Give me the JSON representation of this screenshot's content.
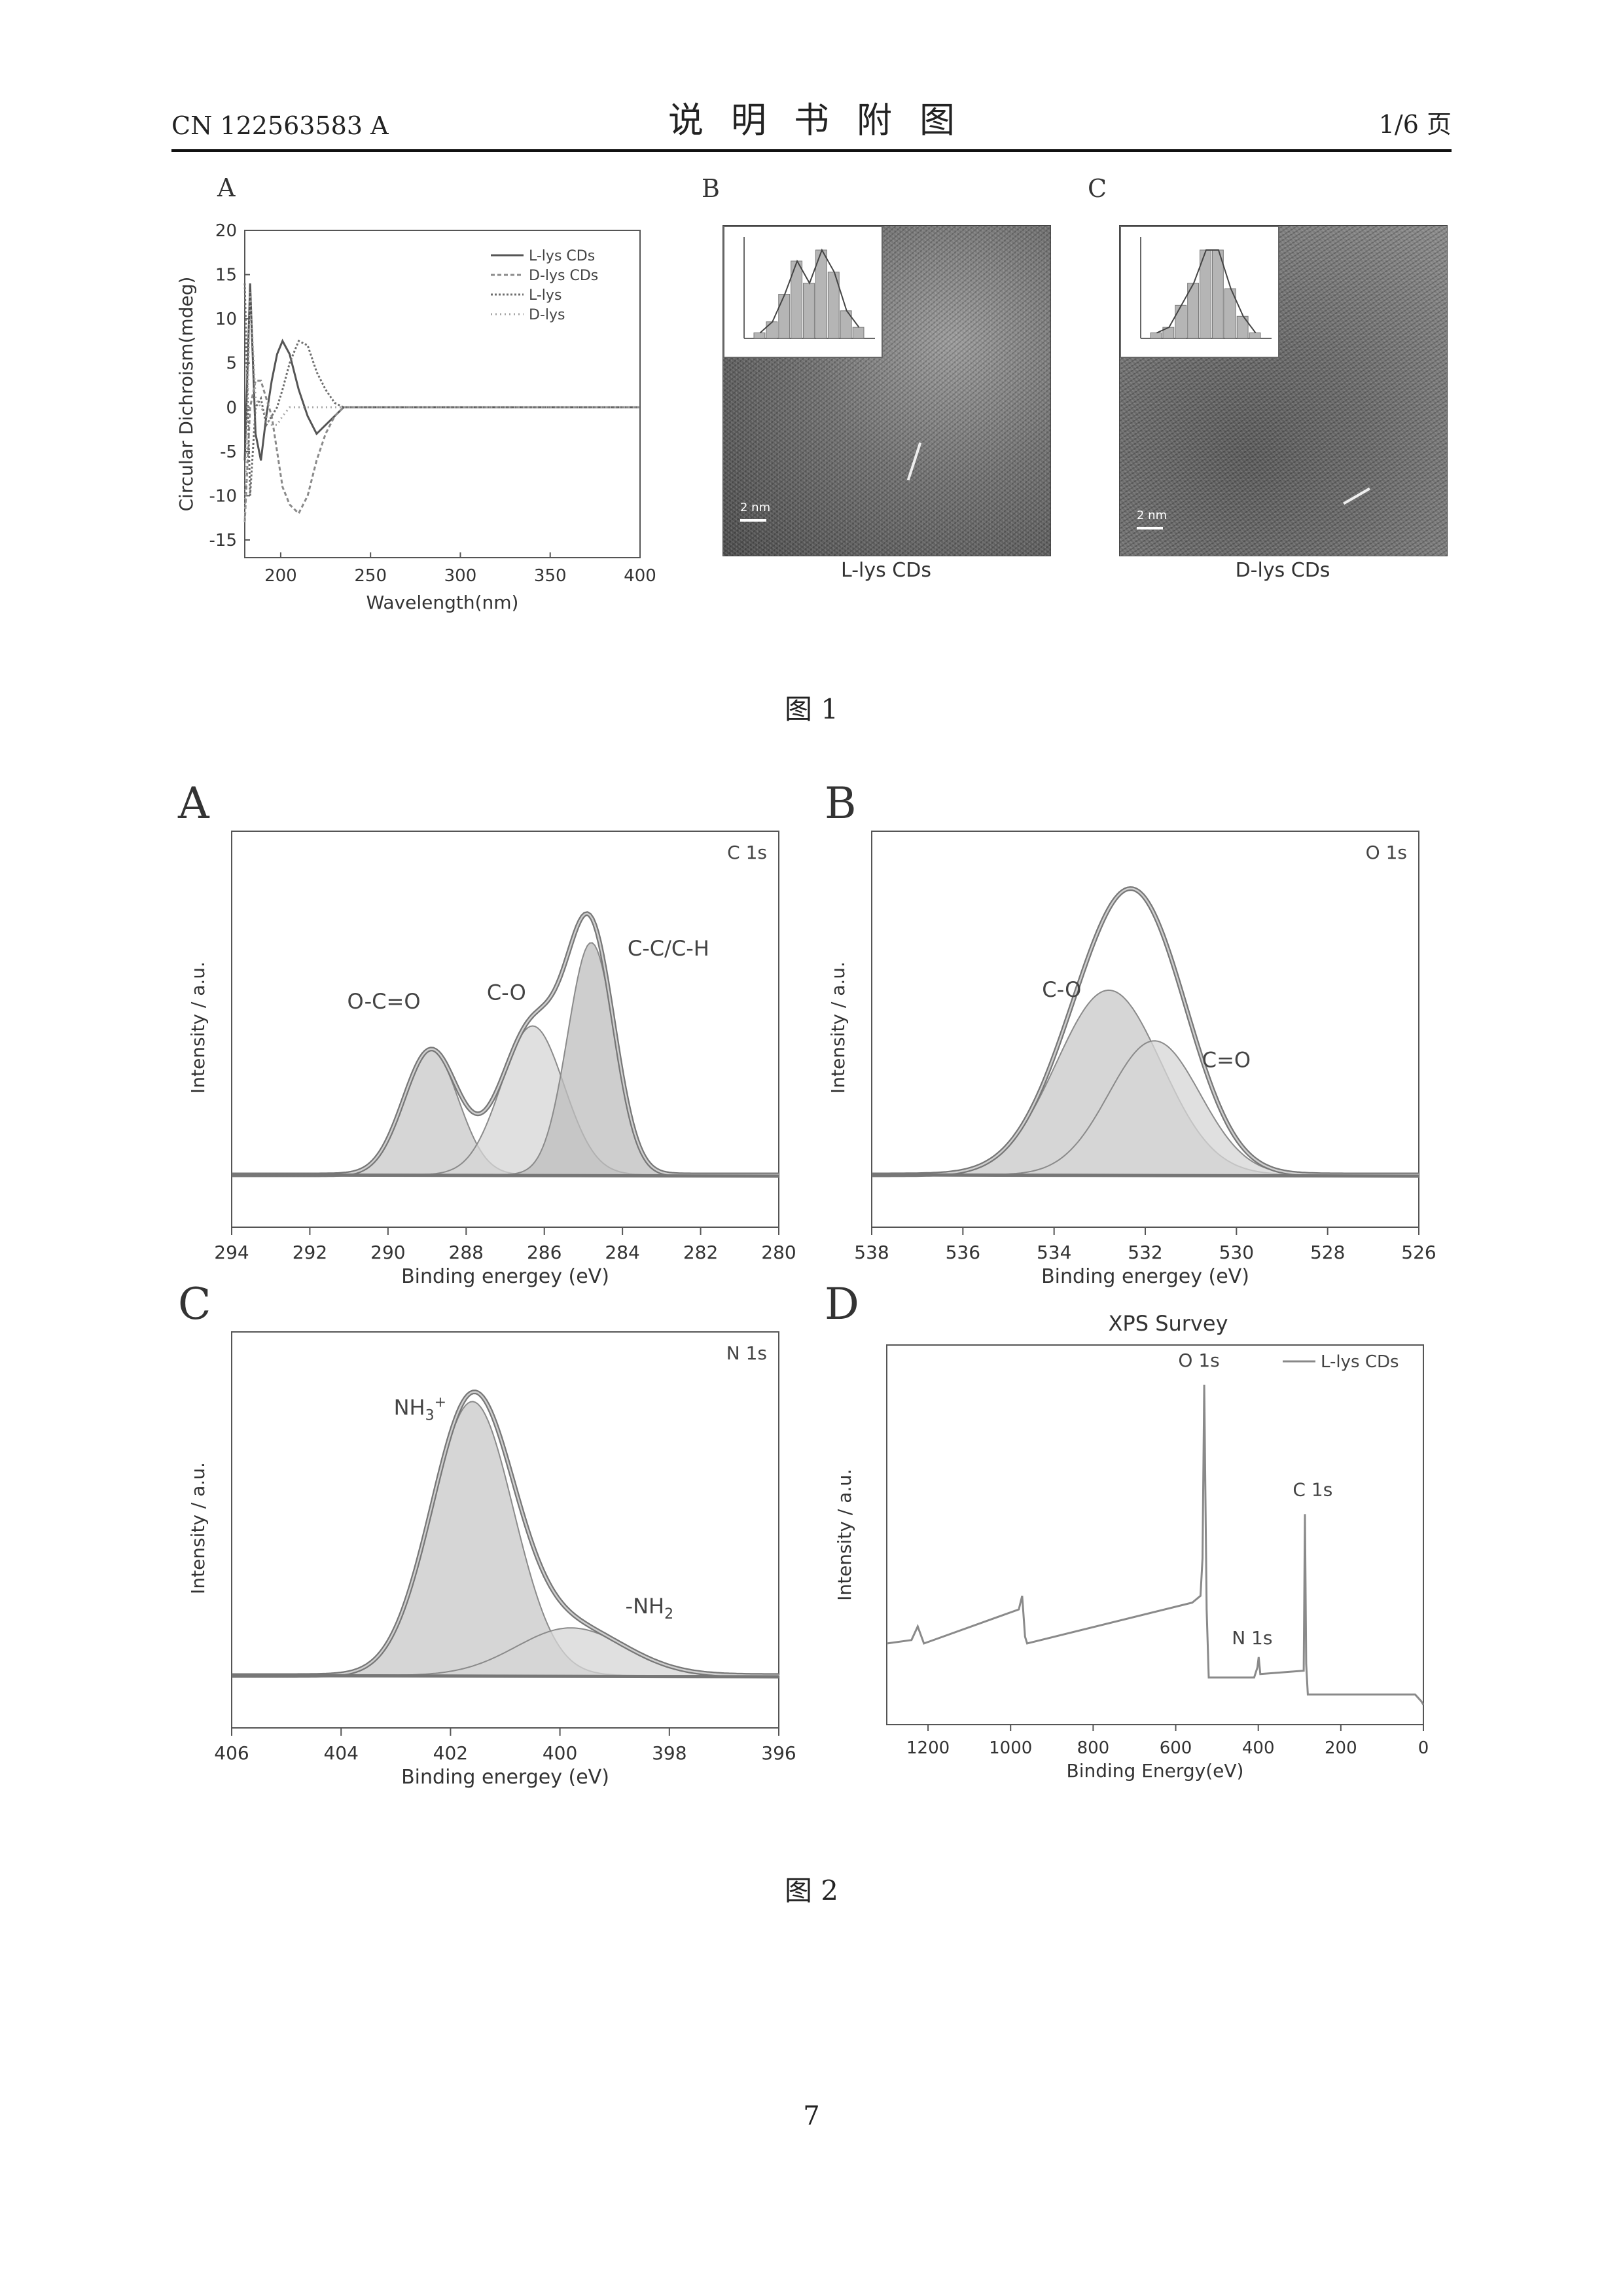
{
  "header": {
    "doc_number": "CN 122563583 A",
    "title": "说明书附图",
    "page_label": "1/6 页"
  },
  "figure1": {
    "caption": "图 1",
    "panelA": {
      "letter": "A",
      "legend": [
        "L-lys CDs",
        "D-lys CDs",
        "L-lys",
        "D-lys"
      ]
    },
    "panelB": {
      "letter": "B",
      "caption": "L-lys CDs",
      "scale": "2 nm"
    },
    "panelC": {
      "letter": "C",
      "caption": "D-lys CDs",
      "scale": "2 nm"
    }
  },
  "figure2": {
    "caption": "图 2",
    "panelA": {
      "letter": "A",
      "label": "C 1s",
      "peaks": [
        "O-C=O",
        "C-O",
        "C-C/C-H"
      ]
    },
    "panelB": {
      "letter": "B",
      "label": "O 1s",
      "peaks": [
        "C-O",
        "C=O"
      ]
    },
    "panelC": {
      "letter": "C",
      "label": "N 1s",
      "peaks": [
        "NH3+",
        "-NH2"
      ]
    },
    "panelD": {
      "letter": "D",
      "title": "XPS Survey",
      "legend": "L-lys CDs",
      "peaks": [
        "O 1s",
        "N 1s",
        "C 1s"
      ]
    }
  },
  "page_number": "7",
  "chart_data": [
    {
      "id": "fig1A",
      "type": "line",
      "title": "",
      "xlabel": "Wavelength(nm)",
      "ylabel": "Circular Dichroism(mdeg)",
      "xlim": [
        180,
        400
      ],
      "ylim": [
        -17,
        20
      ],
      "xticks": [
        200,
        250,
        300,
        350,
        400
      ],
      "yticks": [
        20,
        15,
        10,
        5,
        0,
        -5,
        -10,
        -15
      ],
      "legend_position": "top-right",
      "x": [
        180,
        183,
        186,
        189,
        192,
        195,
        198,
        201,
        205,
        210,
        215,
        220,
        225,
        230,
        235,
        240,
        250,
        300,
        350,
        400
      ],
      "series": [
        {
          "name": "L-lys CDs",
          "color": "#555555",
          "values": [
            -6,
            14,
            -3,
            -6,
            -1,
            3,
            6,
            7.5,
            6,
            2,
            -1,
            -3,
            -2,
            -1,
            0,
            0,
            0,
            0,
            0,
            0
          ]
        },
        {
          "name": "D-lys CDs",
          "color": "#8a8a8a",
          "values": [
            -13,
            0,
            3,
            3,
            1,
            -1,
            -5,
            -9,
            -11,
            -12,
            -10,
            -6,
            -3,
            -1,
            0,
            0,
            0,
            0,
            0,
            0
          ]
        },
        {
          "name": "L-lys",
          "color": "#6e6e6e",
          "values": [
            14,
            -10,
            0,
            1,
            -2,
            -1,
            0,
            2,
            5,
            7.5,
            7,
            4,
            2,
            0.5,
            0,
            0,
            0,
            0,
            0,
            0
          ]
        },
        {
          "name": "D-lys",
          "color": "#a5a5a5",
          "values": [
            -13,
            13,
            1,
            0,
            -1,
            -2,
            -2,
            -1,
            0,
            0,
            0,
            0,
            0,
            0,
            0,
            0,
            0,
            0,
            0,
            0
          ]
        }
      ]
    },
    {
      "id": "fig1B_inset",
      "type": "bar",
      "title": "",
      "xlabel": "",
      "ylabel": "",
      "values": [
        1,
        3,
        8,
        14,
        10,
        16,
        12,
        5,
        2
      ]
    },
    {
      "id": "fig1C_inset",
      "type": "bar",
      "title": "",
      "xlabel": "",
      "ylabel": "",
      "values": [
        1,
        2,
        6,
        10,
        16,
        16,
        9,
        4,
        1
      ]
    },
    {
      "id": "fig2A",
      "type": "area",
      "title": "",
      "xlabel": "Binding energey (eV)",
      "ylabel": "Intensity / a.u.",
      "x_reversed": true,
      "xlim": [
        294,
        280
      ],
      "xticks": [
        294,
        292,
        290,
        288,
        286,
        284,
        282,
        280
      ],
      "series": [
        {
          "name": "O-C=O",
          "center": 288.9,
          "height": 0.42,
          "width": 0.7
        },
        {
          "name": "C-O",
          "center": 286.3,
          "height": 0.5,
          "width": 0.8
        },
        {
          "name": "C-C/C-H",
          "center": 284.8,
          "height": 0.78,
          "width": 0.6
        }
      ]
    },
    {
      "id": "fig2B",
      "type": "area",
      "title": "",
      "xlabel": "Binding energey (eV)",
      "ylabel": "Intensity / a.u.",
      "x_reversed": true,
      "xlim": [
        538,
        526
      ],
      "xticks": [
        538,
        536,
        534,
        532,
        530,
        528,
        526
      ],
      "series": [
        {
          "name": "C-O",
          "center": 532.8,
          "height": 0.62,
          "width": 1.15
        },
        {
          "name": "C=O",
          "center": 531.8,
          "height": 0.45,
          "width": 1.0
        }
      ]
    },
    {
      "id": "fig2C",
      "type": "area",
      "title": "",
      "xlabel": "Binding energey (eV)",
      "ylabel": "Intensity / a.u.",
      "x_reversed": true,
      "xlim": [
        406,
        396
      ],
      "xticks": [
        406,
        404,
        402,
        400,
        398,
        396
      ],
      "series": [
        {
          "name": "NH3+",
          "center": 401.6,
          "height": 0.92,
          "width": 0.75
        },
        {
          "name": "-NH2",
          "center": 399.8,
          "height": 0.16,
          "width": 1.0
        }
      ]
    },
    {
      "id": "fig2D",
      "type": "line",
      "title": "XPS Survey",
      "xlabel": "Binding Energy(eV)",
      "ylabel": "Intensity / a.u.",
      "x_reversed": true,
      "xlim": [
        1300,
        0
      ],
      "xticks": [
        1200,
        1000,
        800,
        600,
        400,
        200,
        0
      ],
      "legend_position": "top-right",
      "series": [
        {
          "name": "L-lys CDs",
          "x": [
            1300,
            1240,
            1225,
            1210,
            980,
            972,
            965,
            960,
            560,
            540,
            535,
            531,
            525,
            520,
            410,
            402,
            399,
            395,
            290,
            287,
            284,
            280,
            20,
            5,
            0
          ],
          "values": [
            0.2,
            0.21,
            0.25,
            0.2,
            0.3,
            0.34,
            0.22,
            0.2,
            0.32,
            0.34,
            0.45,
            0.96,
            0.3,
            0.1,
            0.1,
            0.13,
            0.16,
            0.11,
            0.12,
            0.58,
            0.14,
            0.05,
            0.05,
            0.03,
            0.02
          ]
        }
      ]
    }
  ]
}
